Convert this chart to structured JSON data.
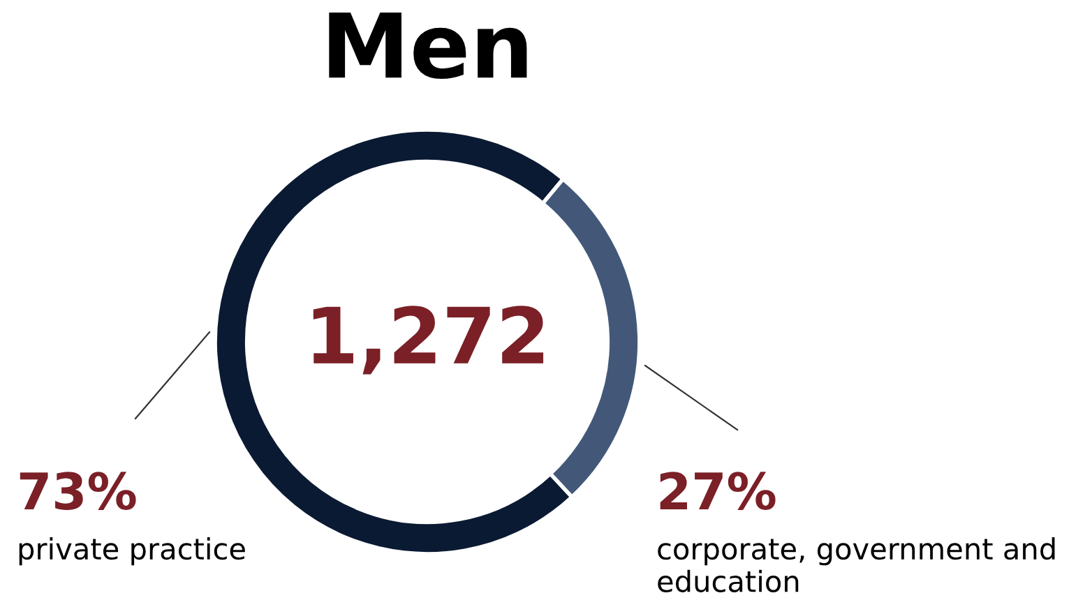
{
  "chart_data": {
    "type": "donut",
    "title": "Men",
    "categories": [
      "private practice",
      "corporate, government and education"
    ],
    "values": [
      73,
      27
    ],
    "colors": [
      "#0b1a33",
      "#435879"
    ],
    "value_labels": [
      "73%",
      "27%"
    ],
    "annotations": [
      "1,272"
    ],
    "legend": false
  }
}
